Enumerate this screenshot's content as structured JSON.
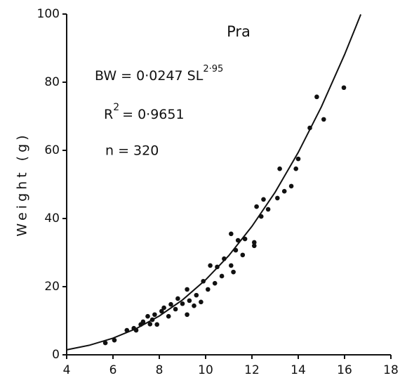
{
  "chart_data": {
    "type": "scatter",
    "title": "Pra",
    "ylabel": "Weight (g)",
    "annotations": {
      "equation": "BW = 0·0247 SL",
      "equation_exponent": "2·95",
      "r2_base": "R",
      "r2_exponent": "2",
      "r2_value": "= 0·9651",
      "n": "n = 320"
    },
    "x": [
      5.67,
      6.06,
      6.6,
      6.9,
      7.0,
      7.2,
      7.3,
      7.5,
      7.6,
      7.7,
      7.8,
      7.9,
      8.1,
      8.2,
      8.4,
      8.5,
      8.7,
      8.8,
      9.0,
      9.2,
      9.2,
      9.3,
      9.5,
      9.6,
      9.8,
      9.9,
      10.1,
      10.2,
      10.4,
      10.5,
      10.7,
      10.8,
      11.1,
      11.1,
      11.2,
      11.3,
      11.4,
      11.6,
      11.7,
      12.1,
      12.1,
      12.2,
      12.4,
      12.5,
      12.7,
      13.1,
      13.2,
      13.4,
      13.7,
      13.9,
      14.0,
      14.5,
      14.8,
      15.1,
      15.97
    ],
    "values": [
      3.5,
      4.3,
      7.2,
      7.8,
      7.2,
      8.9,
      9.7,
      11.3,
      9.0,
      10.3,
      11.8,
      8.9,
      12.8,
      13.8,
      11.3,
      14.8,
      13.4,
      16.5,
      15.0,
      11.8,
      19.2,
      15.9,
      14.4,
      17.5,
      15.5,
      21.6,
      19.2,
      26.2,
      21.0,
      25.8,
      23.1,
      28.2,
      26.2,
      35.5,
      24.3,
      30.7,
      33.6,
      29.3,
      34.0,
      33.0,
      32.0,
      43.5,
      40.6,
      45.6,
      42.7,
      46.0,
      54.6,
      48.0,
      49.5,
      54.6,
      57.5,
      66.6,
      75.7,
      69.1,
      78.4
    ],
    "color": "#111111",
    "curve": {
      "x": [
        4,
        5,
        6,
        7,
        8,
        9,
        10,
        11,
        12,
        13,
        14,
        15,
        16,
        16.5,
        16.7
      ],
      "values": [
        1.47,
        2.85,
        4.88,
        7.69,
        11.4,
        16.1,
        22.0,
        29.1,
        37.7,
        47.7,
        59.4,
        72.8,
        88.1,
        96.5,
        99.9
      ]
    },
    "xlim": [
      4,
      18
    ],
    "xticks": [
      4,
      6,
      8,
      10,
      12,
      14,
      16,
      18
    ],
    "ylim": [
      0,
      100
    ],
    "yticks": [
      0,
      20,
      40,
      60,
      80,
      100
    ]
  }
}
